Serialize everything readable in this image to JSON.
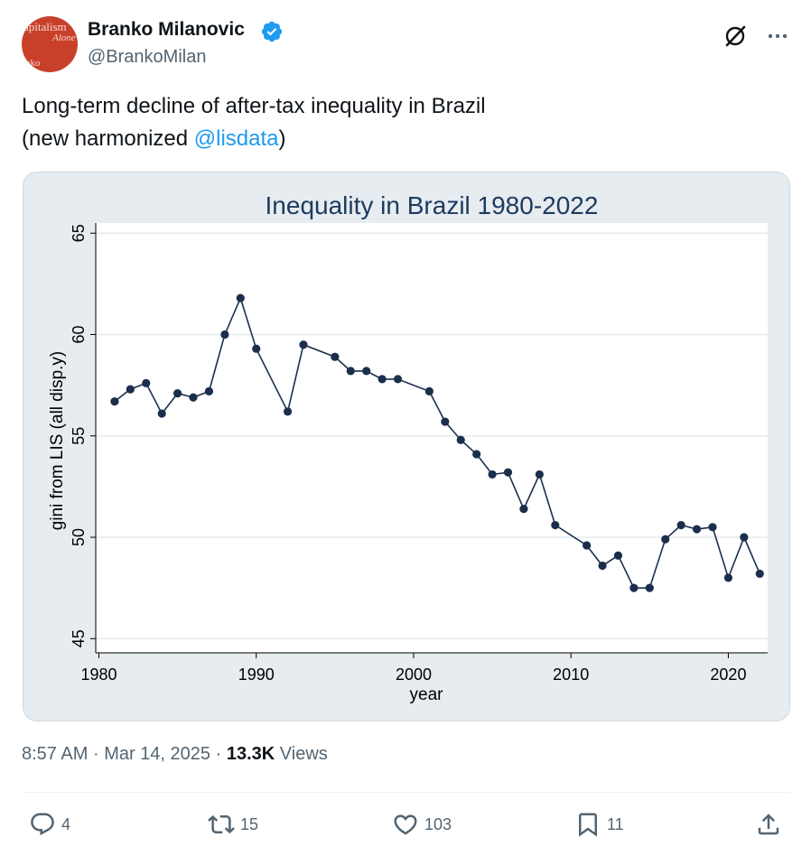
{
  "author": {
    "name": "Branko Milanovic",
    "handle": "@BrankoMilan",
    "avatar_text": {
      "line1": "apitalism",
      "line2": "Alone",
      "line3": "nko"
    }
  },
  "tweet": {
    "line1": "Long-term decline of after-tax inequality in Brazil",
    "line2_prefix": "(new harmonized ",
    "mention": "@lisdata",
    "line2_suffix": ")"
  },
  "meta": {
    "time": "8:57 AM",
    "date": "Mar 14, 2025",
    "views_count": "13.3K",
    "views_label": "Views"
  },
  "actions": {
    "replies": "4",
    "reposts": "15",
    "likes": "103",
    "bookmarks": "11"
  },
  "colors": {
    "accent": "#1d9bf0",
    "line": "#1b2f4d",
    "chart_bg": "#e6ecef"
  },
  "chart_data": {
    "type": "line",
    "title": "Inequality in Brazil 1980-2022",
    "xlabel": "year",
    "ylabel": "gini from LIS (all disp.y)",
    "xlim": [
      1979.8,
      2022.5
    ],
    "ylim": [
      44.3,
      65.5
    ],
    "xticks": [
      1980,
      1990,
      2000,
      2010,
      2020
    ],
    "yticks": [
      45,
      50,
      55,
      60,
      65
    ],
    "grid": true,
    "series": [
      {
        "name": "gini",
        "x": [
          1981,
          1982,
          1983,
          1984,
          1985,
          1986,
          1987,
          1988,
          1989,
          1990,
          1992,
          1993,
          1995,
          1996,
          1997,
          1998,
          1999,
          2001,
          2002,
          2003,
          2004,
          2005,
          2006,
          2007,
          2008,
          2009,
          2011,
          2012,
          2013,
          2014,
          2015,
          2016,
          2017,
          2018,
          2019,
          2020,
          2021,
          2022
        ],
        "y": [
          56.7,
          57.3,
          57.6,
          56.1,
          57.1,
          56.9,
          57.2,
          60.0,
          61.8,
          59.3,
          56.2,
          59.5,
          58.9,
          58.2,
          58.2,
          57.8,
          57.8,
          57.2,
          55.7,
          54.8,
          54.1,
          53.1,
          53.2,
          51.4,
          53.1,
          50.6,
          49.6,
          48.6,
          49.1,
          47.5,
          47.5,
          49.9,
          50.6,
          50.4,
          50.5,
          48.0,
          50.0,
          48.2
        ]
      }
    ]
  }
}
